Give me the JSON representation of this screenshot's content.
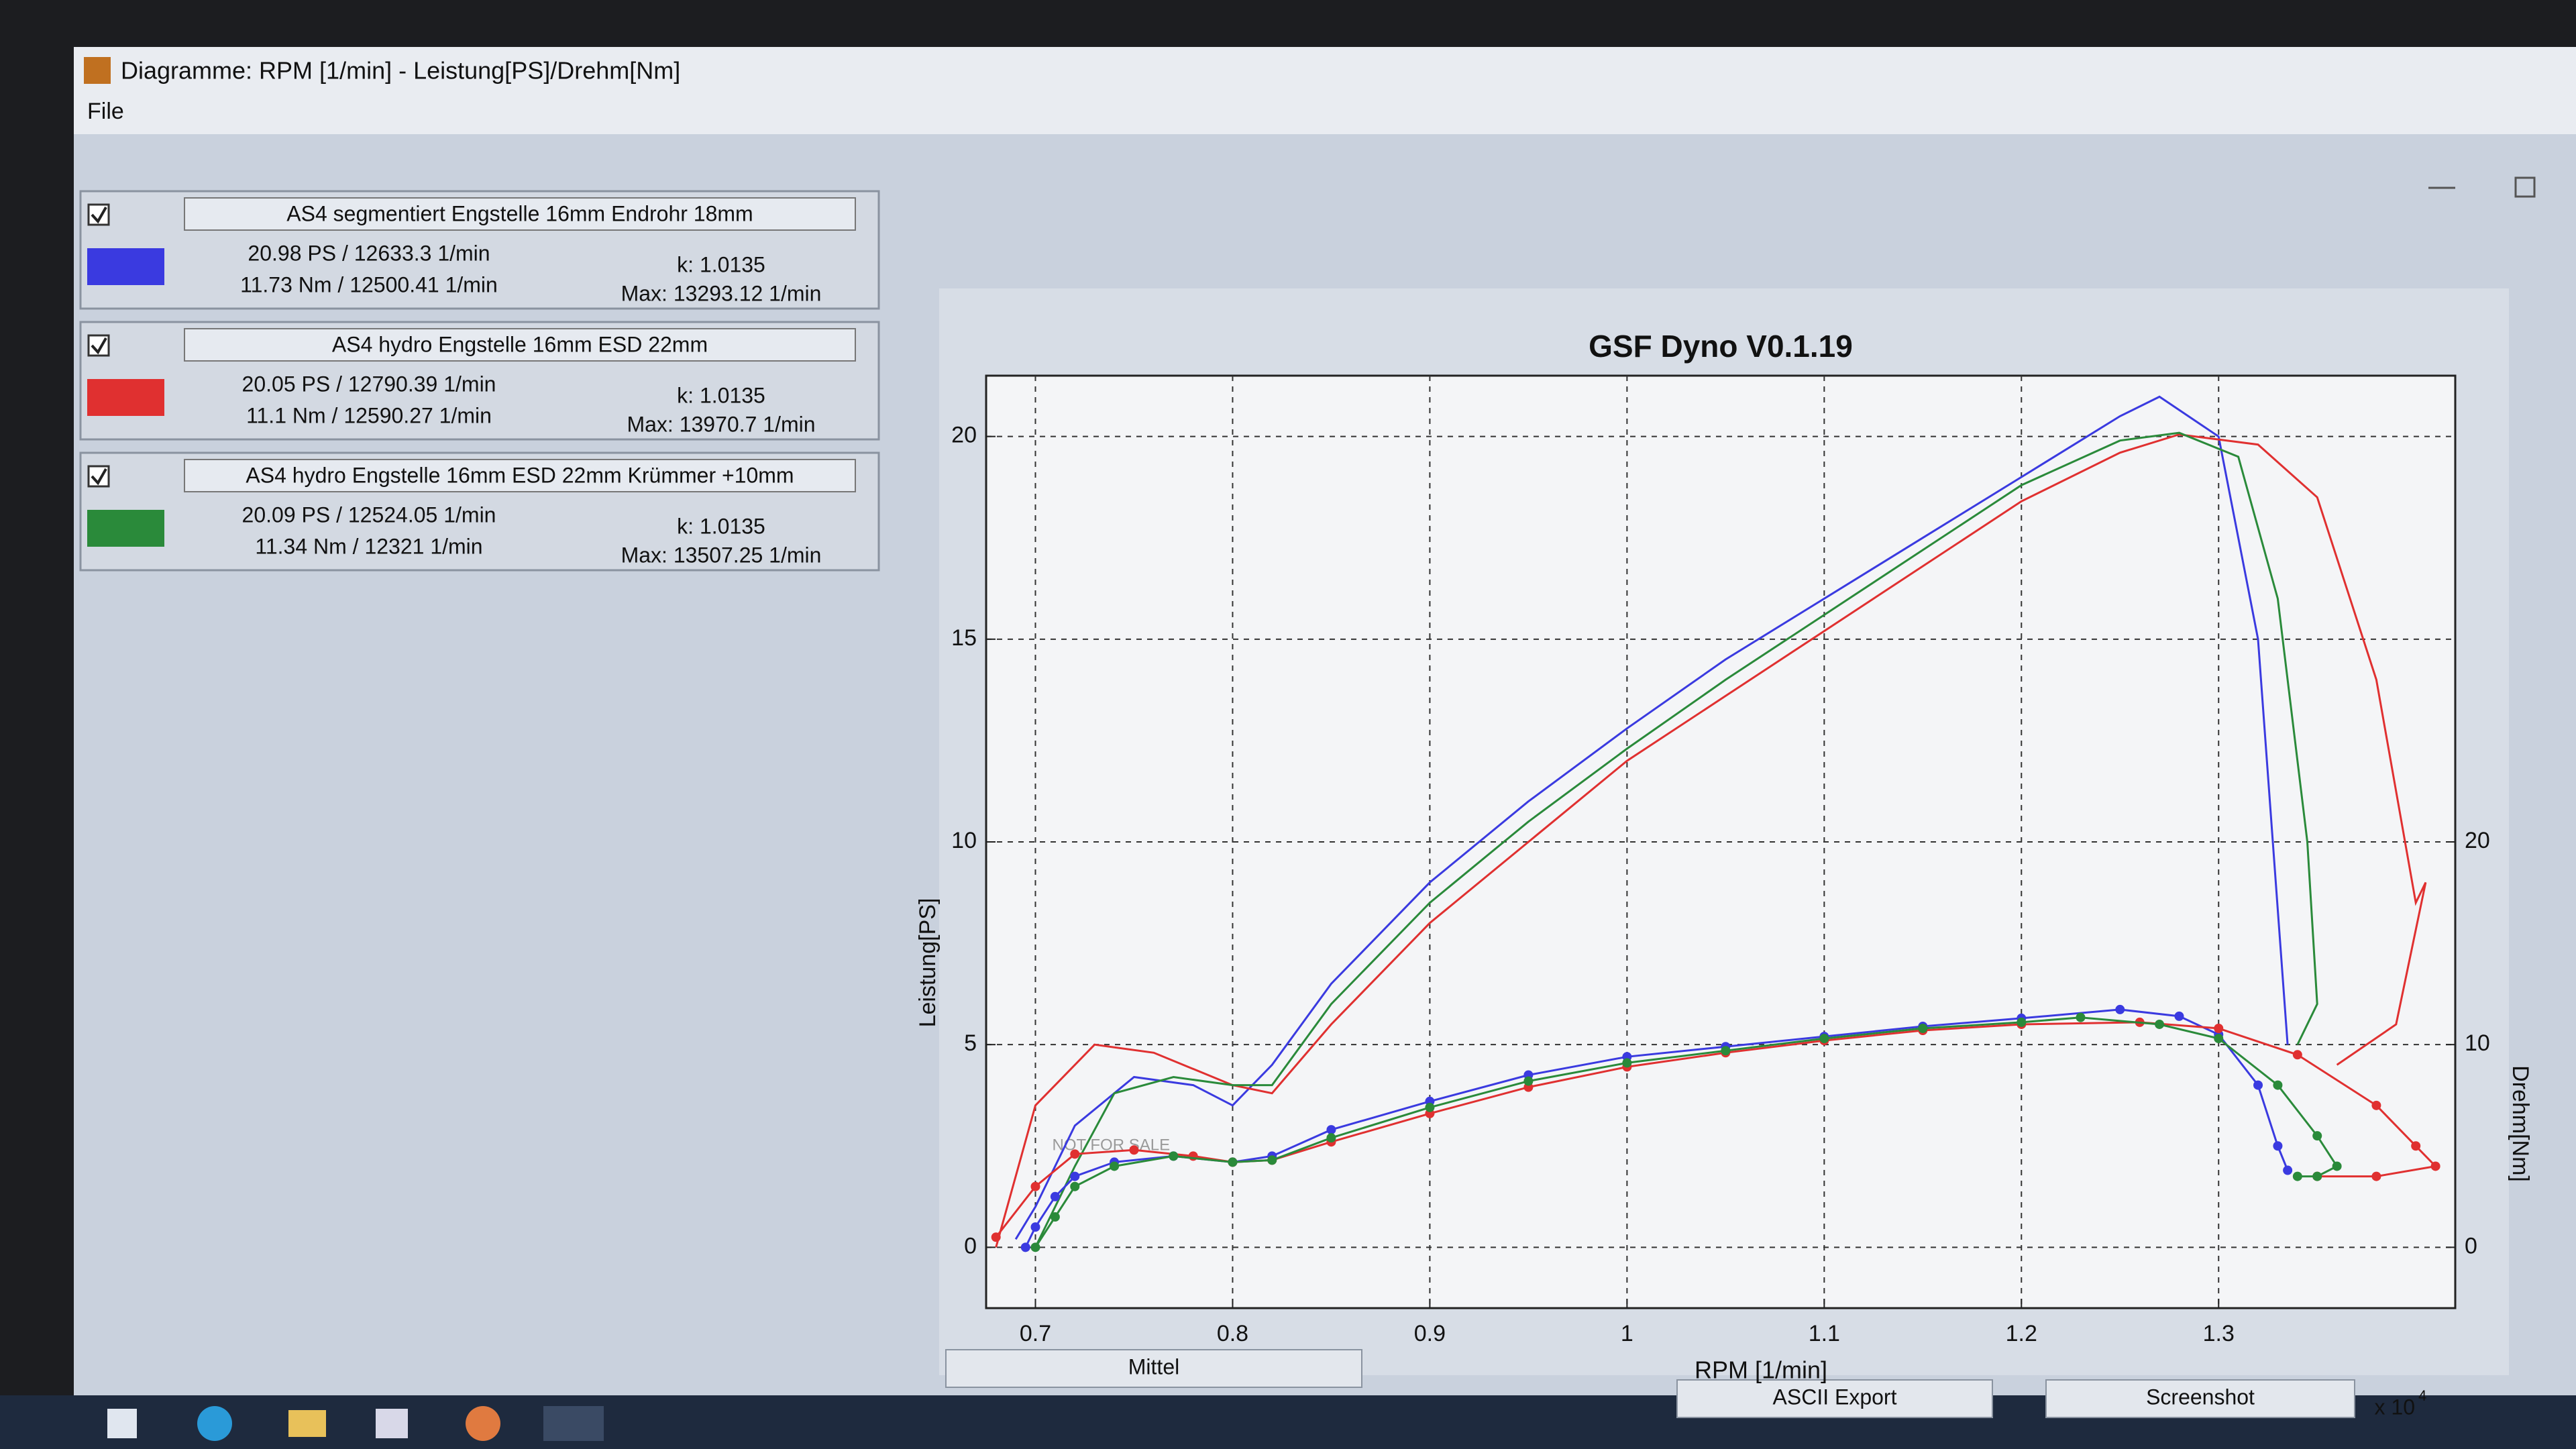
{
  "window": {
    "title": "Diagramme: RPM [1/min] - Leistung[PS]/Drehm[Nm]",
    "menu": "File"
  },
  "legend": [
    {
      "power": "20.98 PS / 12633.3 1/min",
      "torque": "11.73 Nm / 12500.41 1/min",
      "k": "k: 1.0135",
      "max": "Max: 13293.12 1/min"
    },
    {
      "power": "20.05 PS / 12790.39 1/min",
      "torque": "11.1 Nm / 12590.27 1/min",
      "k": "k: 1.0135",
      "max": "Max: 13970.7 1/min"
    },
    {
      "power": "20.09 PS / 12524.05 1/min",
      "torque": "11.34 Nm / 12321 1/min",
      "k": "k: 1.0135",
      "max": "Max: 13507.25 1/min"
    }
  ],
  "buttons": [
    "Mittel",
    "ASCII Export",
    "Screenshot"
  ],
  "chart_data": {
    "type": "line",
    "title": "GSF Dyno V0.1.19",
    "xlabel": "RPM [1/min]",
    "ylabel": "Leistung[PS]",
    "y2label": "Drehm[Nm]",
    "x_multiplier": "x 10",
    "x_multiplier_exponent": "4",
    "watermark": "NOT FOR SALE",
    "xlim": [
      0.675,
      1.42
    ],
    "ylim": [
      -1.5,
      21.5
    ],
    "y2lim": [
      -3,
      43
    ],
    "xticks": [
      0.7,
      0.8,
      0.9,
      1,
      1.1,
      1.2,
      1.3
    ],
    "yticks": [
      0,
      5,
      10,
      15,
      20
    ],
    "y2ticks": [
      0,
      10,
      20
    ],
    "grid": true,
    "series": [
      {
        "name": "AS4 segmentiert Engstelle 16mm Endrohr 18mm",
        "color": "#3a3ae0",
        "axis": "y",
        "x": [
          0.69,
          0.7,
          0.72,
          0.75,
          0.78,
          0.8,
          0.82,
          0.85,
          0.9,
          0.95,
          1.0,
          1.05,
          1.1,
          1.15,
          1.2,
          1.25,
          1.27,
          1.3,
          1.32,
          1.335
        ],
        "values": [
          0.2,
          1,
          3,
          4.2,
          4,
          3.5,
          4.5,
          6.5,
          9,
          11,
          12.8,
          14.5,
          16,
          17.5,
          19,
          20.5,
          20.98,
          20,
          15,
          5
        ]
      },
      {
        "name": "AS4 hydro Engstelle 16mm ESD 22mm",
        "color": "#e03030",
        "axis": "y",
        "x": [
          0.68,
          0.7,
          0.73,
          0.76,
          0.8,
          0.82,
          0.85,
          0.9,
          0.95,
          1.0,
          1.05,
          1.1,
          1.15,
          1.2,
          1.25,
          1.28,
          1.32,
          1.35,
          1.38,
          1.4,
          1.405,
          1.39,
          1.36
        ],
        "values": [
          0,
          3.5,
          5,
          4.8,
          4,
          3.8,
          5.5,
          8,
          10,
          12,
          13.6,
          15.2,
          16.8,
          18.4,
          19.6,
          20.05,
          19.8,
          18.5,
          14,
          8.5,
          9,
          5.5,
          4.5
        ]
      },
      {
        "name": "AS4 hydro Engstelle 16mm ESD 22mm Krümmer +10mm",
        "color": "#2a8a3a",
        "axis": "y",
        "x": [
          0.7,
          0.72,
          0.74,
          0.77,
          0.8,
          0.82,
          0.85,
          0.9,
          0.95,
          1.0,
          1.05,
          1.1,
          1.15,
          1.2,
          1.25,
          1.28,
          1.31,
          1.33,
          1.345,
          1.35,
          1.34
        ],
        "values": [
          0,
          2,
          3.8,
          4.2,
          4,
          4,
          6,
          8.5,
          10.5,
          12.3,
          14,
          15.6,
          17.2,
          18.8,
          19.9,
          20.09,
          19.5,
          16,
          10,
          6,
          5
        ]
      },
      {
        "color": "#3a3ae0",
        "axis": "y2",
        "markers": true,
        "x": [
          0.695,
          0.7,
          0.71,
          0.72,
          0.74,
          0.77,
          0.8,
          0.82,
          0.85,
          0.9,
          0.95,
          1.0,
          1.05,
          1.1,
          1.15,
          1.2,
          1.25,
          1.28,
          1.3,
          1.32,
          1.33,
          1.335
        ],
        "values": [
          0,
          1,
          2.5,
          3.5,
          4.2,
          4.5,
          4.2,
          4.5,
          5.8,
          7.2,
          8.5,
          9.4,
          9.9,
          10.4,
          10.9,
          11.3,
          11.73,
          11.4,
          10.5,
          8,
          5,
          3.8
        ]
      },
      {
        "color": "#e03030",
        "axis": "y2",
        "markers": true,
        "x": [
          0.68,
          0.7,
          0.72,
          0.75,
          0.78,
          0.8,
          0.82,
          0.85,
          0.9,
          0.95,
          1.0,
          1.05,
          1.1,
          1.15,
          1.2,
          1.26,
          1.3,
          1.34,
          1.38,
          1.4,
          1.41,
          1.38,
          1.35
        ],
        "values": [
          0.5,
          3,
          4.6,
          4.8,
          4.5,
          4.2,
          4.3,
          5.2,
          6.6,
          7.9,
          8.9,
          9.6,
          10.2,
          10.7,
          11,
          11.1,
          10.8,
          9.5,
          7,
          5,
          4,
          3.5,
          3.5
        ]
      },
      {
        "color": "#2a8a3a",
        "axis": "y2",
        "markers": true,
        "x": [
          0.7,
          0.71,
          0.72,
          0.74,
          0.77,
          0.8,
          0.82,
          0.85,
          0.9,
          0.95,
          1.0,
          1.05,
          1.1,
          1.15,
          1.2,
          1.23,
          1.27,
          1.3,
          1.33,
          1.35,
          1.36,
          1.35,
          1.34
        ],
        "values": [
          0,
          1.5,
          3,
          4,
          4.5,
          4.2,
          4.3,
          5.4,
          6.9,
          8.2,
          9.1,
          9.7,
          10.3,
          10.8,
          11.1,
          11.34,
          11,
          10.3,
          8,
          5.5,
          4,
          3.5,
          3.5
        ]
      }
    ]
  }
}
